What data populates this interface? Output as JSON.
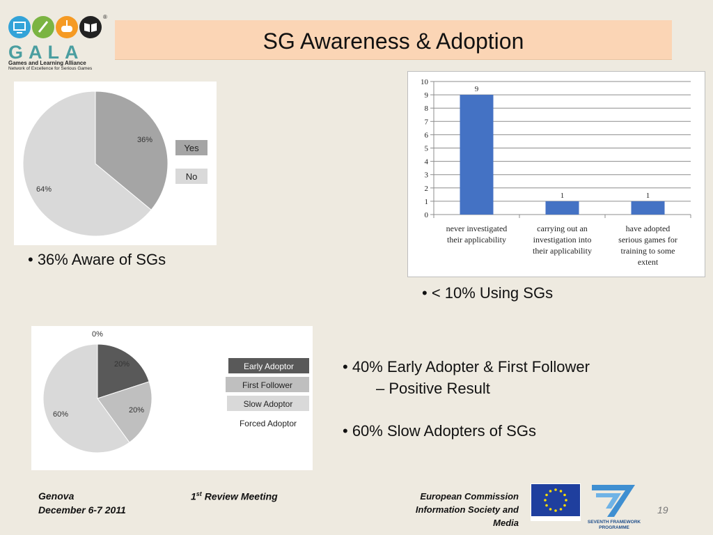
{
  "logo": {
    "text": "GALA",
    "subtitle1": "Games and Learning Alliance",
    "subtitle2": "Network of Excellence for Serious Games",
    "colors": [
      "#33a3d8",
      "#7bb442",
      "#f59a23",
      "#222222"
    ],
    "icons": [
      "monitor-icon",
      "pencil-icon",
      "gamepad-icon",
      "book-icon"
    ]
  },
  "slide": {
    "title": "SG Awareness & Adoption"
  },
  "chart_data": [
    {
      "type": "pie",
      "categories": [
        "Yes",
        "No"
      ],
      "values": [
        36,
        64
      ],
      "labels": [
        "36%",
        "64%"
      ],
      "colors": [
        "#a5a5a5",
        "#d9d9d9"
      ],
      "legend": "right"
    },
    {
      "type": "bar",
      "categories": [
        [
          "never investigated",
          "their applicability"
        ],
        [
          "carrying out an",
          "investigation into",
          "their applicability"
        ],
        [
          "have adopted",
          "serious games for",
          "training to some",
          "extent"
        ]
      ],
      "values": [
        9,
        1,
        1
      ],
      "data_labels": [
        "9",
        "1",
        "1"
      ],
      "ylim": [
        0,
        10
      ],
      "yticks": [
        "0",
        "1",
        "2",
        "3",
        "4",
        "5",
        "6",
        "7",
        "8",
        "9",
        "10"
      ],
      "grid": true,
      "color": "#4472c4"
    },
    {
      "type": "pie",
      "categories": [
        "Early Adoptor",
        "First Follower",
        "Slow Adoptor",
        "Forced Adoptor"
      ],
      "values": [
        20,
        20,
        60,
        0
      ],
      "labels": [
        "20%",
        "20%",
        "60%",
        "0%"
      ],
      "colors": [
        "#595959",
        "#bfbfbf",
        "#d9d9d9",
        "#ffffff"
      ],
      "legend_fills": [
        "#595959",
        "#bfbfbf",
        "#d9d9d9",
        "#ffffff"
      ],
      "legend": "right"
    }
  ],
  "bullets": {
    "aware": "• 36% Aware of SGs",
    "using": "•  < 10% Using SGs",
    "early": "• 40% Early Adopter & First Follower",
    "early_cont": "– Positive Result",
    "slow": "• 60% Slow Adopters of SGs"
  },
  "footer": {
    "city": "Genova",
    "date": "December 6-7 2011",
    "meeting_num": "1",
    "meeting_sup": "st",
    "meeting_rest": " Review Meeting",
    "ec_line1": "European Commission",
    "ec_line2": "Information Society and",
    "ec_line3": "Media",
    "fp7_line1": "SEVENTH FRAMEWORK",
    "fp7_line2": "PROGRAMME",
    "page": "19"
  }
}
